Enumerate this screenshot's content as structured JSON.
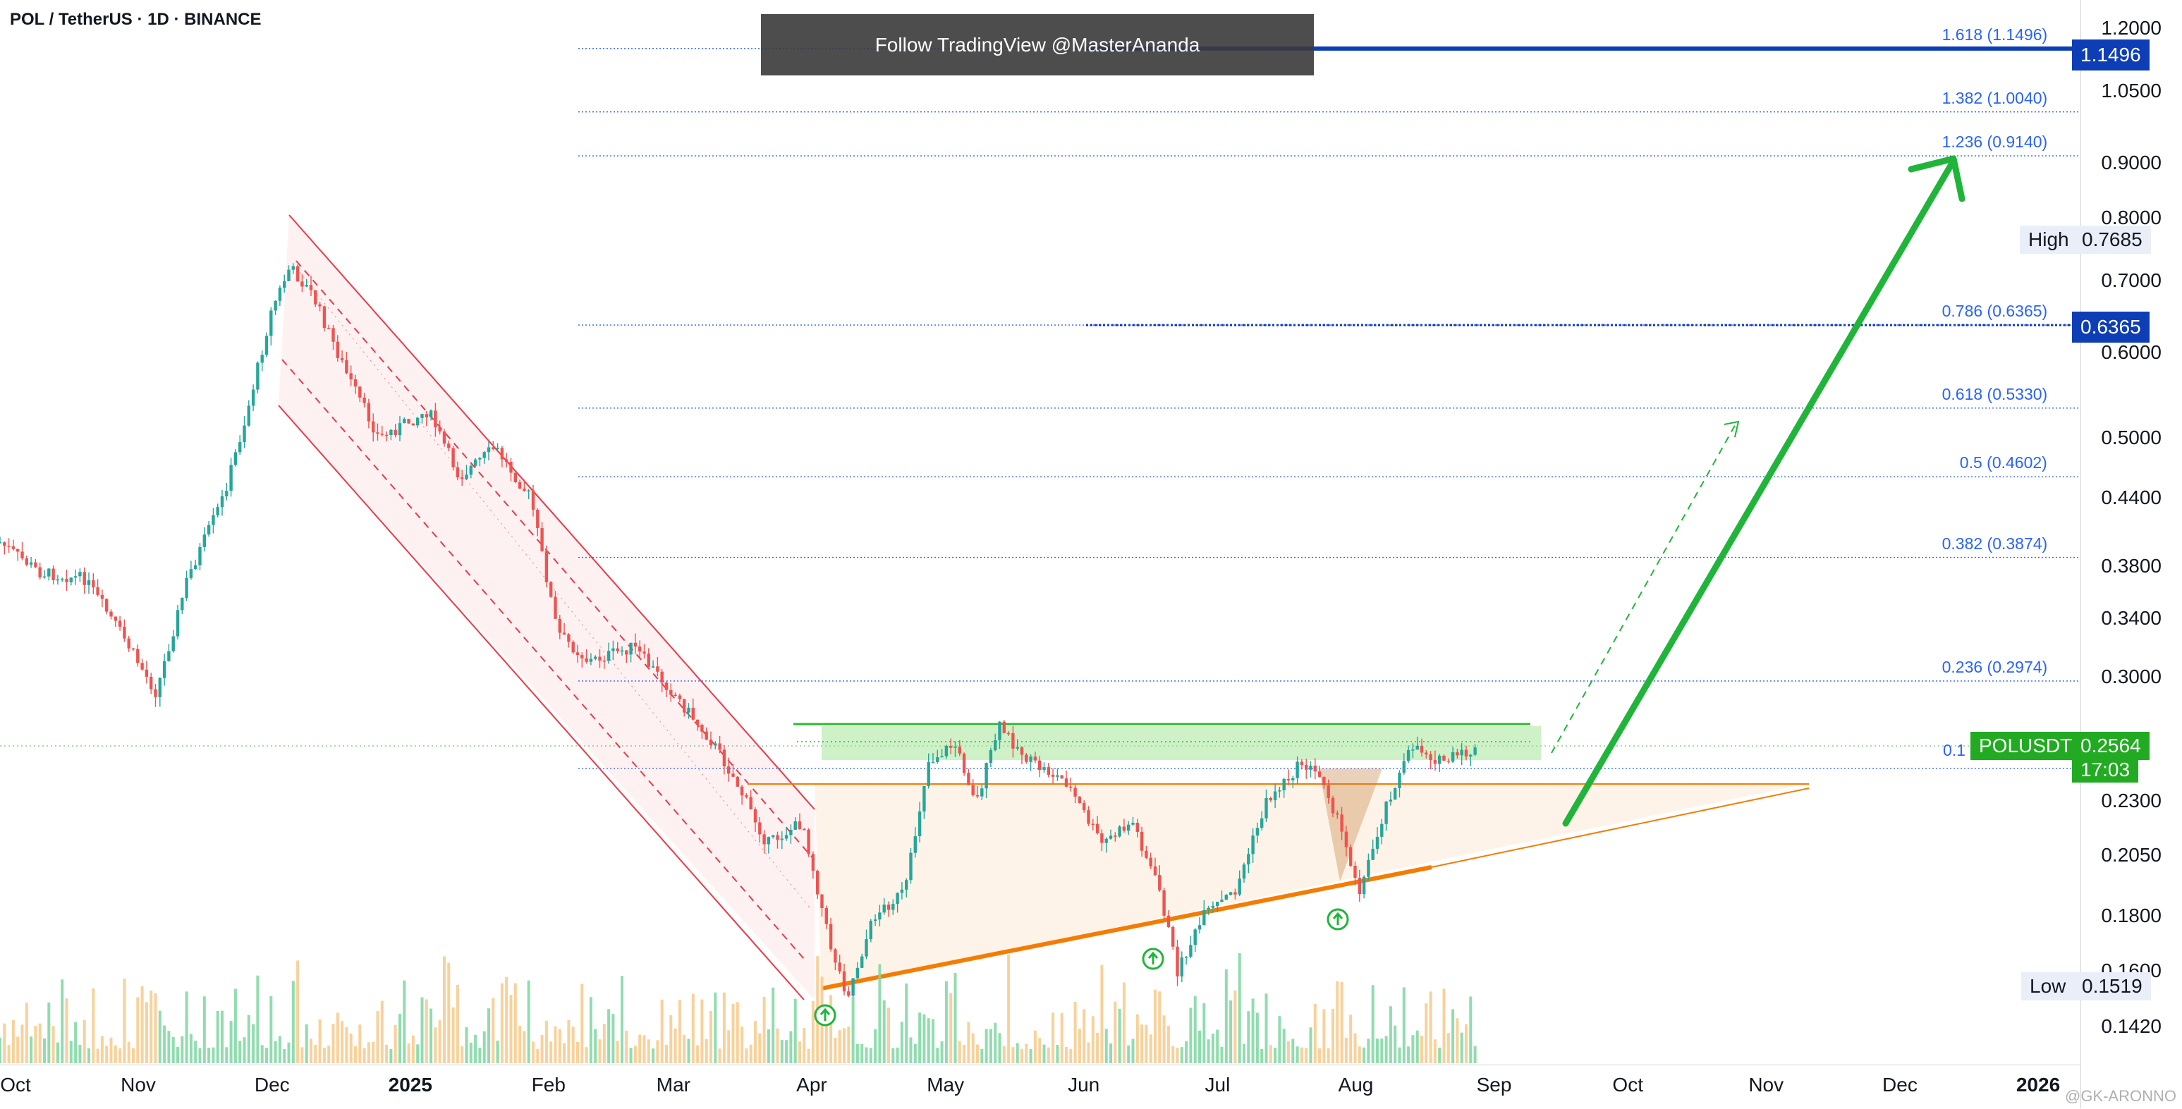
{
  "header": {
    "title": "POL / TetherUS · 1D · BINANCE",
    "banner": "Follow TradingView @MasterAnanda",
    "watermark": "@GK-ARONNO"
  },
  "price_axis": {
    "ticks": [
      "1.2000",
      "1.0500",
      "0.9000",
      "0.8000",
      "0.7000",
      "0.6000",
      "0.5000",
      "0.4400",
      "0.3800",
      "0.3400",
      "0.3000",
      "0.2300",
      "0.2050",
      "0.1800",
      "0.1600",
      "0.1420"
    ]
  },
  "time_axis": {
    "ticks": [
      {
        "label": "Oct",
        "bold": false
      },
      {
        "label": "Nov",
        "bold": false
      },
      {
        "label": "Dec",
        "bold": false
      },
      {
        "label": "2025",
        "bold": true
      },
      {
        "label": "Feb",
        "bold": false
      },
      {
        "label": "Mar",
        "bold": false
      },
      {
        "label": "Apr",
        "bold": false
      },
      {
        "label": "May",
        "bold": false
      },
      {
        "label": "Jun",
        "bold": false
      },
      {
        "label": "Jul",
        "bold": false
      },
      {
        "label": "Aug",
        "bold": false
      },
      {
        "label": "Sep",
        "bold": false
      },
      {
        "label": "Oct",
        "bold": false
      },
      {
        "label": "Nov",
        "bold": false
      },
      {
        "label": "Dec",
        "bold": false
      },
      {
        "label": "2026",
        "bold": true
      }
    ]
  },
  "price_labels": {
    "fib_top": "1.1496",
    "fib_786": "0.6365",
    "high_tag": "High",
    "high_value": "0.7685",
    "low_tag": "Low",
    "low_value": "0.1519",
    "symbol": "POLUSDT",
    "current": "0.2564",
    "countdown": "17:03"
  },
  "fib_levels": [
    {
      "label": "1.618 (1.1496)",
      "value": 1.1496
    },
    {
      "label": "1.382 (1.0040)",
      "value": 1.004
    },
    {
      "label": "1.236 (0.9140)",
      "value": 0.914
    },
    {
      "label": "0.786 (0.6365)",
      "value": 0.6365
    },
    {
      "label": "0.618 (0.5330)",
      "value": 0.533
    },
    {
      "label": "0.5 (0.4602)",
      "value": 0.4602
    },
    {
      "label": "0.382 (0.3874)",
      "value": 0.3874
    },
    {
      "label": "0.236 (0.2974)",
      "value": 0.2974
    },
    {
      "label": "0.1",
      "value": 0.25
    }
  ],
  "colors": {
    "up": "#26a69a",
    "down": "#ef5350",
    "fib": "#2962ff",
    "fib_strong": "#0d3eb5",
    "channel": "#f23645",
    "triangle": "#f57c00",
    "resistance": "#2eb82e",
    "arrow": "#20b53a",
    "price_tag": "#22ab22",
    "vol_up": "#7ed6a1",
    "vol_down": "#f7c98a"
  },
  "chart_data": {
    "type": "candlestick",
    "symbol": "POL / TetherUS",
    "timeframe": "1D",
    "exchange": "BINANCE",
    "scale": "log",
    "ylim": [
      0.135,
      1.23
    ],
    "x_range": [
      "2024-10-01",
      "2026-01-01"
    ],
    "grid": false,
    "series": [
      {
        "name": "POLUSDT",
        "close_path": [
          {
            "date": "2024-10-01",
            "price": 0.4
          },
          {
            "date": "2024-10-10",
            "price": 0.375
          },
          {
            "date": "2024-10-20",
            "price": 0.37
          },
          {
            "date": "2024-10-28",
            "price": 0.33
          },
          {
            "date": "2024-11-05",
            "price": 0.29
          },
          {
            "date": "2024-11-12",
            "price": 0.37
          },
          {
            "date": "2024-11-20",
            "price": 0.44
          },
          {
            "date": "2024-11-25",
            "price": 0.52
          },
          {
            "date": "2024-12-01",
            "price": 0.66
          },
          {
            "date": "2024-12-05",
            "price": 0.72
          },
          {
            "date": "2024-12-10",
            "price": 0.68
          },
          {
            "date": "2024-12-18",
            "price": 0.57
          },
          {
            "date": "2024-12-25",
            "price": 0.5
          },
          {
            "date": "2025-01-05",
            "price": 0.53
          },
          {
            "date": "2025-01-12",
            "price": 0.46
          },
          {
            "date": "2025-01-20",
            "price": 0.49
          },
          {
            "date": "2025-01-28",
            "price": 0.44
          },
          {
            "date": "2025-02-03",
            "price": 0.33
          },
          {
            "date": "2025-02-10",
            "price": 0.31
          },
          {
            "date": "2025-02-20",
            "price": 0.32
          },
          {
            "date": "2025-03-01",
            "price": 0.29
          },
          {
            "date": "2025-03-10",
            "price": 0.26
          },
          {
            "date": "2025-03-15",
            "price": 0.24
          },
          {
            "date": "2025-03-22",
            "price": 0.21
          },
          {
            "date": "2025-03-30",
            "price": 0.22
          },
          {
            "date": "2025-04-05",
            "price": 0.17
          },
          {
            "date": "2025-04-09",
            "price": 0.1519
          },
          {
            "date": "2025-04-15",
            "price": 0.18
          },
          {
            "date": "2025-04-22",
            "price": 0.19
          },
          {
            "date": "2025-04-27",
            "price": 0.25
          },
          {
            "date": "2025-05-03",
            "price": 0.26
          },
          {
            "date": "2025-05-08",
            "price": 0.23
          },
          {
            "date": "2025-05-13",
            "price": 0.27
          },
          {
            "date": "2025-05-20",
            "price": 0.25
          },
          {
            "date": "2025-05-28",
            "price": 0.24
          },
          {
            "date": "2025-06-05",
            "price": 0.21
          },
          {
            "date": "2025-06-12",
            "price": 0.22
          },
          {
            "date": "2025-06-18",
            "price": 0.19
          },
          {
            "date": "2025-06-22",
            "price": 0.16
          },
          {
            "date": "2025-06-28",
            "price": 0.18
          },
          {
            "date": "2025-07-05",
            "price": 0.19
          },
          {
            "date": "2025-07-12",
            "price": 0.23
          },
          {
            "date": "2025-07-20",
            "price": 0.25
          },
          {
            "date": "2025-07-25",
            "price": 0.24
          },
          {
            "date": "2025-08-02",
            "price": 0.19
          },
          {
            "date": "2025-08-08",
            "price": 0.23
          },
          {
            "date": "2025-08-14",
            "price": 0.26
          },
          {
            "date": "2025-08-20",
            "price": 0.25
          },
          {
            "date": "2025-08-28",
            "price": 0.2564
          }
        ]
      }
    ],
    "high": 0.7685,
    "low": 0.1519,
    "last": 0.2564
  }
}
